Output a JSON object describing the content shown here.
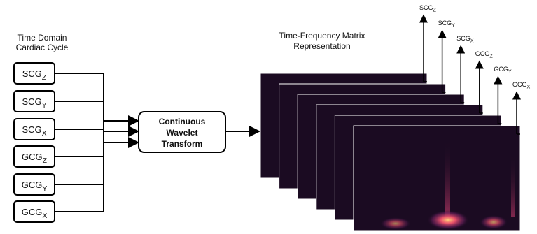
{
  "input_title": [
    "Time Domain",
    "Cardiac Cycle"
  ],
  "signals": [
    {
      "base": "SCG",
      "sub": "Z"
    },
    {
      "base": "SCG",
      "sub": "Y"
    },
    {
      "base": "SCG",
      "sub": "X"
    },
    {
      "base": "GCG",
      "sub": "Z"
    },
    {
      "base": "GCG",
      "sub": "Y"
    },
    {
      "base": "GCG",
      "sub": "X"
    }
  ],
  "transform": [
    "Continuous",
    "Wavelet",
    "Transform"
  ],
  "output_title": [
    "Time-Frequency Matrix",
    "Representation"
  ],
  "stack_labels": [
    {
      "base": "SCG",
      "sub": "Z"
    },
    {
      "base": "SCG",
      "sub": "Y"
    },
    {
      "base": "SCG",
      "sub": "X"
    },
    {
      "base": "GCG",
      "sub": "Z"
    },
    {
      "base": "GCG",
      "sub": "Y"
    },
    {
      "base": "GCG",
      "sub": "X"
    }
  ]
}
